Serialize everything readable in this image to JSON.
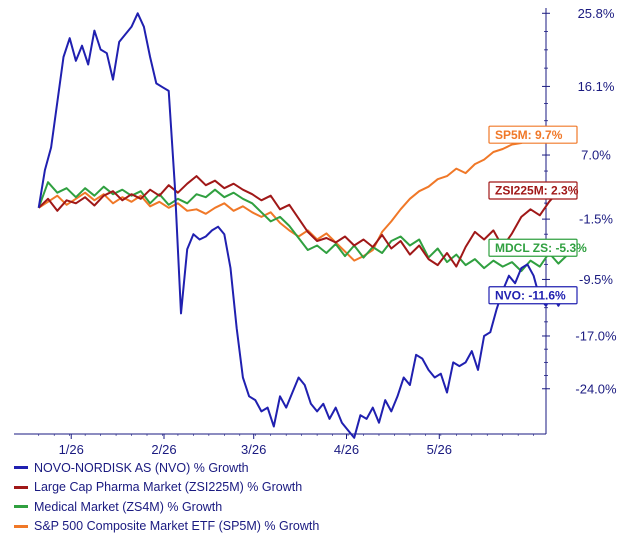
{
  "chart_data": {
    "type": "line",
    "title": "",
    "xlabel": "",
    "ylabel": "",
    "ylim": [
      -30,
      26.5
    ],
    "y_ticks": [
      "25.8%",
      "16.1%",
      "7.0%",
      "-1.5%",
      "-9.5%",
      "-17.0%",
      "-24.0%"
    ],
    "y_tick_values": [
      25.8,
      16.1,
      7.0,
      -1.5,
      -9.5,
      -17.0,
      -24.0
    ],
    "x_ticks": [
      "1/26",
      "2/26",
      "3/26",
      "4/26",
      "5/26"
    ],
    "x_tick_values": [
      10.5,
      40.5,
      69.5,
      99.5,
      129.5
    ],
    "x_range_days": [
      -8,
      164
    ],
    "grid": false,
    "series": [
      {
        "name": "NOVO-NORDISK AS (NVO) % Growth",
        "color": "#2020b0",
        "end_label": "NVO: -11.6%",
        "points": [
          [
            0,
            0.0
          ],
          [
            2,
            5.0
          ],
          [
            4,
            8.0
          ],
          [
            6,
            14.0
          ],
          [
            8,
            20.0
          ],
          [
            10,
            22.5
          ],
          [
            12,
            19.5
          ],
          [
            14,
            21.5
          ],
          [
            16,
            19.0
          ],
          [
            18,
            23.5
          ],
          [
            20,
            21.0
          ],
          [
            22,
            20.5
          ],
          [
            24,
            17.0
          ],
          [
            26,
            22.0
          ],
          [
            28,
            23.0
          ],
          [
            30,
            24.0
          ],
          [
            32,
            25.8
          ],
          [
            34,
            24.0
          ],
          [
            36,
            20.0
          ],
          [
            38,
            16.5
          ],
          [
            40,
            16.0
          ],
          [
            42,
            15.5
          ],
          [
            44,
            3.0
          ],
          [
            46,
            -14.0
          ],
          [
            48,
            -5.5
          ],
          [
            50,
            -3.5
          ],
          [
            52,
            -4.2
          ],
          [
            54,
            -3.8
          ],
          [
            56,
            -3.0
          ],
          [
            58,
            -2.5
          ],
          [
            60,
            -3.5
          ],
          [
            62,
            -8.0
          ],
          [
            64,
            -16.0
          ],
          [
            66,
            -22.5
          ],
          [
            68,
            -25.0
          ],
          [
            70,
            -25.5
          ],
          [
            72,
            -27.0
          ],
          [
            74,
            -26.5
          ],
          [
            76,
            -29.0
          ],
          [
            78,
            -25.0
          ],
          [
            80,
            -26.5
          ],
          [
            82,
            -24.5
          ],
          [
            84,
            -22.5
          ],
          [
            86,
            -23.5
          ],
          [
            88,
            -26.0
          ],
          [
            90,
            -27.0
          ],
          [
            92,
            -26.0
          ],
          [
            94,
            -28.0
          ],
          [
            96,
            -26.5
          ],
          [
            98,
            -28.5
          ],
          [
            100,
            -29.5
          ],
          [
            102,
            -30.5
          ],
          [
            104,
            -27.5
          ],
          [
            106,
            -28.0
          ],
          [
            108,
            -26.5
          ],
          [
            110,
            -28.5
          ],
          [
            112,
            -25.5
          ],
          [
            114,
            -27.0
          ],
          [
            116,
            -25.0
          ],
          [
            118,
            -22.5
          ],
          [
            120,
            -23.5
          ],
          [
            122,
            -19.5
          ],
          [
            124,
            -20.0
          ],
          [
            126,
            -21.5
          ],
          [
            128,
            -22.5
          ],
          [
            130,
            -22.0
          ],
          [
            132,
            -24.5
          ],
          [
            134,
            -20.5
          ],
          [
            136,
            -21.0
          ],
          [
            138,
            -20.5
          ],
          [
            140,
            -19.0
          ],
          [
            142,
            -21.5
          ],
          [
            144,
            -17.0
          ],
          [
            146,
            -16.5
          ],
          [
            148,
            -13.5
          ],
          [
            150,
            -11.0
          ],
          [
            152,
            -9.0
          ],
          [
            154,
            -10.0
          ],
          [
            156,
            -8.0
          ],
          [
            158,
            -7.5
          ],
          [
            160,
            -9.0
          ],
          [
            162,
            -12.0
          ],
          [
            164,
            -13.0
          ],
          [
            166,
            -11.5
          ],
          [
            168,
            -13.0
          ],
          [
            170,
            -11.5
          ],
          [
            172,
            -12.0
          ],
          [
            174,
            -11.6
          ]
        ]
      },
      {
        "name": "Large Cap Pharma Market (ZSI225M) % Growth",
        "color": "#a01818",
        "end_label": "ZSI225M: 2.3%",
        "points": [
          [
            0,
            0.0
          ],
          [
            3,
            1.2
          ],
          [
            6,
            -0.4
          ],
          [
            9,
            1.0
          ],
          [
            12,
            0.6
          ],
          [
            15,
            1.4
          ],
          [
            18,
            0.3
          ],
          [
            21,
            1.6
          ],
          [
            24,
            2.2
          ],
          [
            27,
            1.0
          ],
          [
            30,
            1.8
          ],
          [
            33,
            1.2
          ],
          [
            36,
            2.4
          ],
          [
            39,
            1.6
          ],
          [
            42,
            3.0
          ],
          [
            45,
            2.0
          ],
          [
            48,
            3.2
          ],
          [
            51,
            4.2
          ],
          [
            54,
            3.0
          ],
          [
            57,
            3.6
          ],
          [
            60,
            2.6
          ],
          [
            63,
            3.2
          ],
          [
            66,
            2.4
          ],
          [
            69,
            1.8
          ],
          [
            72,
            1.0
          ],
          [
            75,
            1.6
          ],
          [
            78,
            -0.2
          ],
          [
            81,
            0.4
          ],
          [
            84,
            -1.4
          ],
          [
            87,
            -3.2
          ],
          [
            90,
            -4.4
          ],
          [
            93,
            -4.0
          ],
          [
            96,
            -4.6
          ],
          [
            99,
            -3.8
          ],
          [
            102,
            -5.0
          ],
          [
            105,
            -4.2
          ],
          [
            108,
            -5.2
          ],
          [
            111,
            -3.6
          ],
          [
            114,
            -5.4
          ],
          [
            117,
            -4.4
          ],
          [
            120,
            -6.2
          ],
          [
            123,
            -5.0
          ],
          [
            126,
            -6.8
          ],
          [
            129,
            -7.6
          ],
          [
            132,
            -6.0
          ],
          [
            135,
            -7.8
          ],
          [
            138,
            -5.2
          ],
          [
            141,
            -3.2
          ],
          [
            144,
            -4.2
          ],
          [
            147,
            -3.0
          ],
          [
            150,
            -5.2
          ],
          [
            153,
            -3.4
          ],
          [
            156,
            -1.2
          ],
          [
            159,
            -0.2
          ],
          [
            162,
            -1.0
          ],
          [
            165,
            0.8
          ],
          [
            168,
            2.2
          ],
          [
            171,
            1.6
          ],
          [
            174,
            2.3
          ]
        ]
      },
      {
        "name": "Medical Market (ZS4M) % Growth",
        "color": "#30a040",
        "end_label": "MDCL ZS: -5.3%",
        "points": [
          [
            0,
            0.0
          ],
          [
            3,
            3.4
          ],
          [
            6,
            2.0
          ],
          [
            9,
            2.6
          ],
          [
            12,
            1.4
          ],
          [
            15,
            2.6
          ],
          [
            18,
            1.6
          ],
          [
            21,
            2.8
          ],
          [
            24,
            1.8
          ],
          [
            27,
            2.4
          ],
          [
            30,
            1.6
          ],
          [
            33,
            2.2
          ],
          [
            36,
            0.6
          ],
          [
            39,
            1.8
          ],
          [
            42,
            0.4
          ],
          [
            45,
            1.2
          ],
          [
            48,
            0.6
          ],
          [
            51,
            1.8
          ],
          [
            54,
            1.4
          ],
          [
            57,
            2.4
          ],
          [
            60,
            1.4
          ],
          [
            63,
            2.0
          ],
          [
            66,
            1.2
          ],
          [
            69,
            0.6
          ],
          [
            72,
            -0.6
          ],
          [
            75,
            -1.8
          ],
          [
            78,
            -1.2
          ],
          [
            81,
            -2.4
          ],
          [
            84,
            -4.0
          ],
          [
            87,
            -5.6
          ],
          [
            90,
            -5.0
          ],
          [
            93,
            -6.0
          ],
          [
            96,
            -4.8
          ],
          [
            99,
            -6.4
          ],
          [
            102,
            -5.0
          ],
          [
            105,
            -6.6
          ],
          [
            108,
            -5.2
          ],
          [
            111,
            -6.0
          ],
          [
            114,
            -4.4
          ],
          [
            117,
            -3.8
          ],
          [
            120,
            -5.0
          ],
          [
            123,
            -4.2
          ],
          [
            126,
            -6.6
          ],
          [
            129,
            -5.4
          ],
          [
            132,
            -7.2
          ],
          [
            135,
            -6.2
          ],
          [
            138,
            -7.6
          ],
          [
            141,
            -6.8
          ],
          [
            144,
            -8.0
          ],
          [
            147,
            -7.0
          ],
          [
            150,
            -7.8
          ],
          [
            153,
            -7.2
          ],
          [
            156,
            -8.4
          ],
          [
            159,
            -7.0
          ],
          [
            162,
            -7.8
          ],
          [
            165,
            -6.0
          ],
          [
            168,
            -7.4
          ],
          [
            171,
            -6.2
          ],
          [
            174,
            -5.3
          ]
        ]
      },
      {
        "name": "S&P 500 Composite Market ETF (SP5M) % Growth",
        "color": "#f07828",
        "end_label": "SP5M: 9.7%",
        "points": [
          [
            0,
            0.0
          ],
          [
            3,
            0.8
          ],
          [
            6,
            1.6
          ],
          [
            9,
            0.4
          ],
          [
            12,
            1.2
          ],
          [
            15,
            2.0
          ],
          [
            18,
            1.0
          ],
          [
            21,
            1.8
          ],
          [
            24,
            0.6
          ],
          [
            27,
            1.4
          ],
          [
            30,
            0.8
          ],
          [
            33,
            1.6
          ],
          [
            36,
            0.2
          ],
          [
            39,
            0.8
          ],
          [
            42,
            0.0
          ],
          [
            45,
            0.6
          ],
          [
            48,
            -0.4
          ],
          [
            51,
            -0.2
          ],
          [
            54,
            -0.8
          ],
          [
            57,
            0.0
          ],
          [
            60,
            0.6
          ],
          [
            63,
            -0.4
          ],
          [
            66,
            0.2
          ],
          [
            69,
            -0.6
          ],
          [
            72,
            -1.2
          ],
          [
            75,
            -0.6
          ],
          [
            78,
            -2.0
          ],
          [
            81,
            -3.0
          ],
          [
            84,
            -3.8
          ],
          [
            87,
            -3.0
          ],
          [
            90,
            -4.2
          ],
          [
            93,
            -3.4
          ],
          [
            96,
            -4.6
          ],
          [
            99,
            -5.8
          ],
          [
            102,
            -7.0
          ],
          [
            105,
            -6.4
          ],
          [
            108,
            -5.6
          ],
          [
            111,
            -3.2
          ],
          [
            114,
            -1.8
          ],
          [
            117,
            -0.2
          ],
          [
            120,
            1.2
          ],
          [
            123,
            2.2
          ],
          [
            126,
            2.8
          ],
          [
            129,
            3.8
          ],
          [
            132,
            4.2
          ],
          [
            135,
            5.2
          ],
          [
            138,
            4.6
          ],
          [
            141,
            5.8
          ],
          [
            144,
            6.4
          ],
          [
            147,
            7.4
          ],
          [
            150,
            7.8
          ],
          [
            153,
            8.4
          ],
          [
            156,
            8.6
          ],
          [
            159,
            9.2
          ],
          [
            162,
            8.8
          ],
          [
            165,
            10.2
          ],
          [
            168,
            9.0
          ],
          [
            171,
            9.8
          ],
          [
            174,
            9.7
          ]
        ]
      }
    ]
  }
}
